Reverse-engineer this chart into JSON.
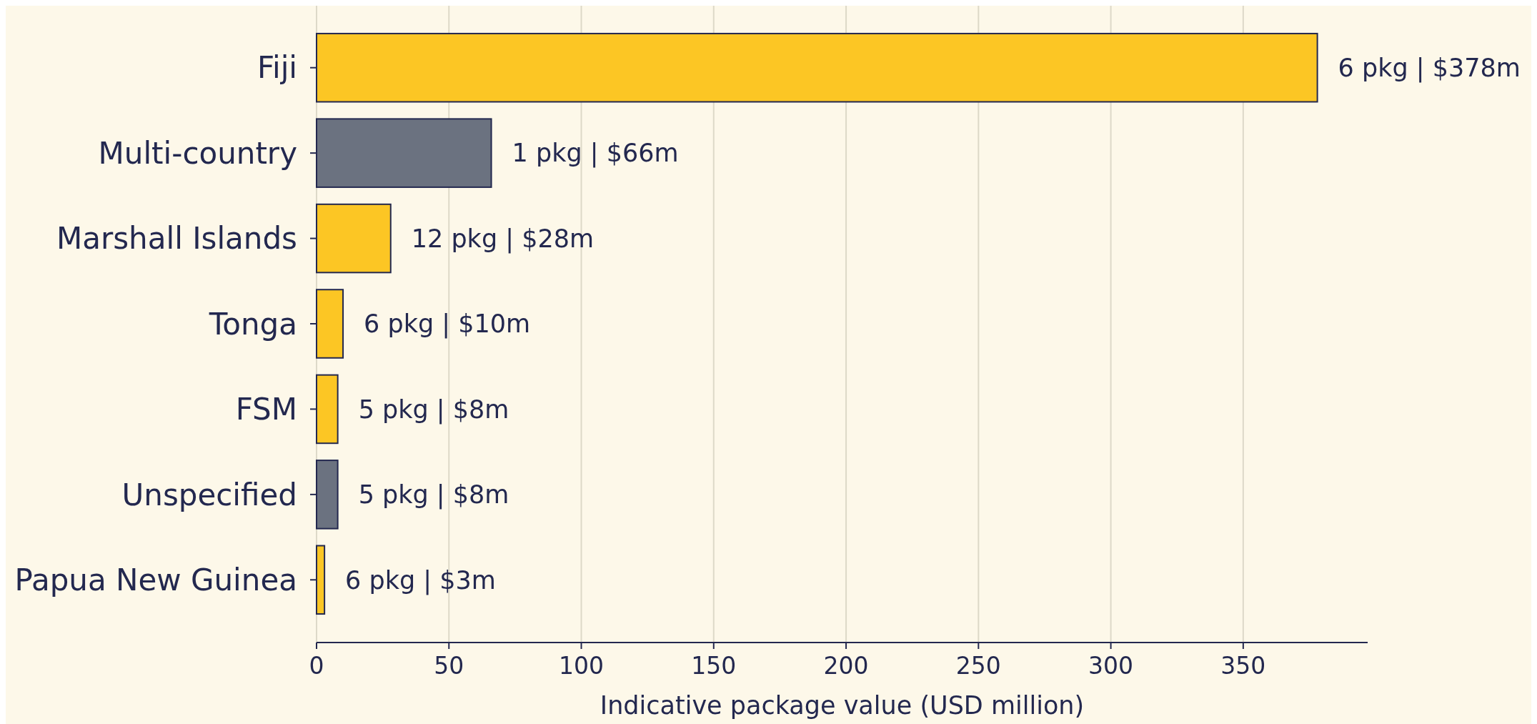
{
  "chart_data": {
    "type": "bar",
    "orientation": "horizontal",
    "xlabel": "Indicative package value (USD million)",
    "categories": [
      "Fiji",
      "Multi-country",
      "Marshall Islands",
      "Tonga",
      "FSM",
      "Unspecified",
      "Papua New Guinea"
    ],
    "values": [
      378,
      66,
      28,
      10,
      8,
      8,
      3
    ],
    "colors": [
      "#fcc624",
      "#6b7280",
      "#fcc624",
      "#fcc624",
      "#fcc624",
      "#6b7280",
      "#fcc624"
    ],
    "annotations": [
      {
        "text": "6 pkg | $378m",
        "x": 378,
        "y": "Fiji"
      },
      {
        "text": "1 pkg | $66m",
        "x": 66,
        "y": "Multi-country"
      },
      {
        "text": "12 pkg | $28m",
        "x": 28,
        "y": "Marshall Islands"
      },
      {
        "text": "6 pkg | $10m",
        "x": 10,
        "y": "Tonga"
      },
      {
        "text": "5 pkg | $8m",
        "x": 8,
        "y": "FSM"
      },
      {
        "text": "5 pkg | $8m",
        "x": 8,
        "y": "Unspecified"
      },
      {
        "text": "6 pkg | $3m",
        "x": 3,
        "y": "Papua New Guinea"
      }
    ],
    "xlim": [
      0,
      397
    ],
    "xticks": [
      0,
      50,
      100,
      150,
      200,
      250,
      300,
      350
    ],
    "grid": "x"
  }
}
